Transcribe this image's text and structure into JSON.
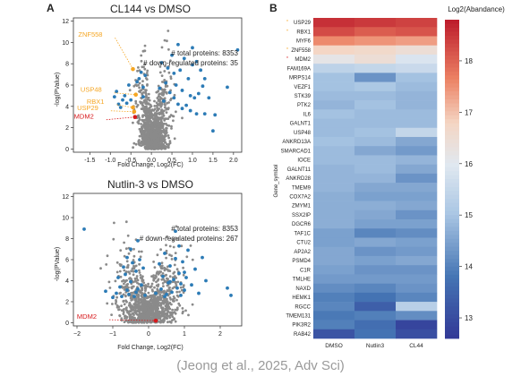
{
  "caption": "(Jeong et al., 2025, Adv Sci)",
  "colors": {
    "gray": "#8a8a8a",
    "blue": "#2c7bb6",
    "orange": "#f5a623",
    "red": "#d7191c"
  },
  "chart_data": [
    {
      "type": "scatter",
      "panel_label": "A",
      "title": "CL144 vs DMSO",
      "xlabel": "Fold Change, Log2(FC)",
      "ylabel": "-log(PValue)",
      "xlim": [
        -1.9,
        2.2
      ],
      "ylim": [
        -0.3,
        12.3
      ],
      "xticks": [
        -1.5,
        -1.0,
        -0.5,
        0.0,
        0.5,
        1.0,
        1.5,
        2.0
      ],
      "xtick_labels": [
        "-1.5",
        "-1.0",
        "-0.5",
        "0.0",
        "0.5",
        "1.0",
        "1.5",
        "2.0"
      ],
      "yticks": [
        0,
        2,
        4,
        6,
        8,
        10,
        12
      ],
      "ytick_labels": [
        "0",
        "2",
        "4",
        "6",
        "8",
        "10",
        "12"
      ],
      "info_lines": [
        "# total proteins: 8353",
        "# down-regulated proteins: 35"
      ],
      "highlights": [
        {
          "name": "ZNF558",
          "x": -0.45,
          "y": 7.5,
          "color": "orange"
        },
        {
          "name": "USP48",
          "x": -0.38,
          "y": 5.1,
          "color": "orange"
        },
        {
          "name": "RBX1",
          "x": -0.45,
          "y": 3.9,
          "color": "orange"
        },
        {
          "name": "USP29",
          "x": -0.42,
          "y": 3.5,
          "color": "orange"
        },
        {
          "name": "MDM2",
          "x": -0.4,
          "y": 3.0,
          "color": "red"
        }
      ],
      "blue_points": [
        [
          -0.9,
          4.9
        ],
        [
          -0.85,
          5.4
        ],
        [
          -0.8,
          4.2
        ],
        [
          -0.7,
          4.6
        ],
        [
          -0.65,
          5.0
        ],
        [
          -0.6,
          4.3
        ],
        [
          -0.55,
          6.0
        ],
        [
          -0.3,
          6.6
        ],
        [
          -0.25,
          7.2
        ],
        [
          -0.2,
          5.8
        ],
        [
          -0.15,
          6.9
        ],
        [
          0.2,
          5.7
        ],
        [
          0.35,
          6.2
        ],
        [
          0.45,
          5.3
        ],
        [
          0.55,
          7.1
        ],
        [
          0.6,
          6.0
        ],
        [
          0.7,
          7.4
        ],
        [
          0.75,
          5.5
        ],
        [
          0.8,
          8.5
        ],
        [
          0.9,
          6.6
        ],
        [
          0.95,
          3.6
        ],
        [
          1.0,
          7.9
        ],
        [
          1.05,
          4.8
        ],
        [
          1.1,
          8.2
        ],
        [
          1.1,
          3.3
        ],
        [
          1.2,
          7.4
        ],
        [
          1.25,
          5.9
        ],
        [
          1.3,
          3.3
        ],
        [
          1.4,
          4.8
        ],
        [
          1.5,
          1.7
        ],
        [
          1.55,
          3.2
        ],
        [
          1.85,
          5.8
        ],
        [
          2.1,
          9.3
        ],
        [
          0.3,
          4.5
        ],
        [
          0.65,
          4.2
        ],
        [
          0.85,
          4.1
        ],
        [
          0.5,
          8.8
        ],
        [
          1.0,
          9.5
        ],
        [
          0.65,
          9.8
        ],
        [
          0.4,
          7.6
        ],
        [
          1.15,
          5.2
        ],
        [
          0.95,
          5.0
        ],
        [
          -0.75,
          3.9
        ],
        [
          -0.5,
          4.6
        ],
        [
          -0.2,
          4.9
        ],
        [
          0.25,
          8.1
        ],
        [
          0.55,
          4.8
        ],
        [
          0.75,
          3.8
        ],
        [
          -0.35,
          6.3
        ],
        [
          1.3,
          6.6
        ]
      ],
      "gray_cloud": {
        "x_mean": 0.05,
        "x_sd": 0.18,
        "y_max": 12,
        "count": 1100
      }
    },
    {
      "type": "scatter",
      "panel_label": "",
      "title": "Nutlin-3 vs DMSO",
      "xlabel": "Fold Change, Log2(FC)",
      "ylabel": "-log(PValue)",
      "xlim": [
        -2.1,
        2.6
      ],
      "ylim": [
        -0.3,
        12.3
      ],
      "xticks": [
        -2,
        -1,
        0,
        1,
        2
      ],
      "xtick_labels": [
        "−2",
        "−1",
        "0",
        "1",
        "2"
      ],
      "yticks": [
        0,
        2,
        4,
        6,
        8,
        10,
        12
      ],
      "ytick_labels": [
        "0",
        "2",
        "4",
        "6",
        "8",
        "10",
        "12"
      ],
      "info_lines": [
        "# total proteins: 8353",
        "# down-regulated proteins: 267"
      ],
      "highlights": [
        {
          "name": "MDM2",
          "x": 0.2,
          "y": 0.2,
          "color": "red"
        }
      ],
      "blue_points": [
        [
          -1.8,
          8.9
        ],
        [
          -1.2,
          3.0
        ],
        [
          -0.9,
          2.8
        ],
        [
          -0.8,
          3.4
        ],
        [
          -0.7,
          5.3
        ],
        [
          -0.65,
          4.6
        ],
        [
          -0.6,
          6.2
        ],
        [
          -0.55,
          2.7
        ],
        [
          -0.5,
          3.9
        ],
        [
          -0.45,
          5.7
        ],
        [
          -0.4,
          2.5
        ],
        [
          -0.35,
          4.9
        ],
        [
          -0.3,
          3.2
        ],
        [
          -0.25,
          6.0
        ],
        [
          -0.5,
          7.0
        ],
        [
          -0.3,
          7.8
        ],
        [
          -0.2,
          3.6
        ],
        [
          -0.15,
          5.2
        ],
        [
          0.35,
          3.2
        ],
        [
          0.4,
          4.4
        ],
        [
          0.45,
          6.6
        ],
        [
          0.5,
          2.7
        ],
        [
          0.55,
          3.8
        ],
        [
          0.6,
          5.4
        ],
        [
          0.65,
          2.9
        ],
        [
          0.7,
          4.1
        ],
        [
          0.75,
          6.1
        ],
        [
          0.8,
          3.3
        ],
        [
          0.85,
          4.7
        ],
        [
          0.9,
          2.6
        ],
        [
          0.95,
          5.8
        ],
        [
          1.0,
          3.1
        ],
        [
          1.05,
          4.3
        ],
        [
          1.1,
          6.9
        ],
        [
          1.2,
          3.6
        ],
        [
          1.3,
          5.1
        ],
        [
          1.4,
          2.8
        ],
        [
          1.6,
          4.0
        ],
        [
          2.2,
          3.3
        ],
        [
          2.3,
          2.6
        ],
        [
          0.75,
          8.7
        ],
        [
          0.85,
          7.3
        ],
        [
          -0.85,
          4.3
        ],
        [
          -1.0,
          2.4
        ],
        [
          0.3,
          5.6
        ],
        [
          0.2,
          2.8
        ],
        [
          -0.1,
          2.6
        ],
        [
          1.5,
          6.2
        ],
        [
          -0.6,
          3.1
        ],
        [
          0.6,
          3.9
        ],
        [
          -0.35,
          2.9
        ],
        [
          0.45,
          2.5
        ],
        [
          1.0,
          4.8
        ],
        [
          -0.75,
          2.5
        ],
        [
          0.9,
          3.7
        ]
      ],
      "gray_cloud": {
        "x_mean": 0.0,
        "x_sd": 0.42,
        "y_max": 10.5,
        "count": 1100
      }
    },
    {
      "type": "heatmap",
      "panel_label": "B",
      "title": "",
      "colorbar_label": "Log2(Abandance)",
      "ylabel": "Gene_symbol",
      "columns": [
        "DMSO",
        "Nutlin3",
        "CL44"
      ],
      "rows": [
        "USP29",
        "RBX1",
        "MYF6",
        "ZNF558",
        "MDM2",
        "FAM169A",
        "MRPS14",
        "VEZF1",
        "STK39",
        "PTK2",
        "IL6",
        "GALNT1",
        "USP48",
        "ANKRD13A",
        "SMARCAD1",
        "IOCE",
        "GALNT11",
        "ANKRD28",
        "TMEM9",
        "COX7A2",
        "ZMYM1",
        "SSX2IP",
        "DGCR6",
        "TAF1C",
        "CTU2",
        "AP2A2",
        "PSMD4",
        "C1R",
        "TMLHE",
        "NAXD",
        "HEMK1",
        "RGCC",
        "TMEM131",
        "PIK3R2",
        "RAB42"
      ],
      "marked_rows": [
        "USP29",
        "RBX1",
        "ZNF558",
        "MDM2"
      ],
      "values": [
        [
          18.6,
          18.5,
          18.4
        ],
        [
          18.3,
          18.1,
          18.2
        ],
        [
          17.6,
          17.5,
          17.4
        ],
        [
          16.8,
          16.7,
          16.5
        ],
        [
          16.2,
          16.5,
          15.9
        ],
        [
          15.4,
          15.5,
          15.6
        ],
        [
          15.0,
          14.3,
          15.0
        ],
        [
          15.0,
          15.1,
          14.9
        ],
        [
          14.9,
          14.9,
          14.8
        ],
        [
          14.8,
          15.0,
          14.8
        ],
        [
          15.0,
          14.9,
          14.9
        ],
        [
          14.9,
          14.9,
          14.9
        ],
        [
          14.9,
          15.0,
          15.5
        ],
        [
          15.0,
          14.9,
          14.6
        ],
        [
          14.9,
          14.6,
          14.4
        ],
        [
          14.9,
          14.9,
          14.8
        ],
        [
          14.8,
          14.9,
          14.6
        ],
        [
          14.8,
          14.8,
          14.3
        ],
        [
          14.8,
          14.6,
          14.6
        ],
        [
          14.7,
          14.5,
          14.5
        ],
        [
          14.7,
          14.7,
          14.6
        ],
        [
          14.7,
          14.6,
          14.3
        ],
        [
          14.7,
          14.5,
          14.5
        ],
        [
          14.5,
          14.1,
          14.2
        ],
        [
          14.5,
          14.6,
          14.5
        ],
        [
          14.6,
          14.3,
          14.4
        ],
        [
          14.6,
          14.5,
          14.6
        ],
        [
          14.5,
          14.3,
          14.3
        ],
        [
          14.4,
          14.4,
          14.4
        ],
        [
          14.2,
          14.1,
          14.3
        ],
        [
          14.0,
          13.8,
          14.1
        ],
        [
          14.1,
          13.4,
          15.3
        ],
        [
          13.9,
          14.0,
          14.2
        ],
        [
          14.0,
          13.7,
          12.9
        ],
        [
          13.2,
          13.8,
          13.1
        ]
      ],
      "vmin": 12.6,
      "vmax": 18.8,
      "colorbar_ticks": [
        13,
        14,
        15,
        16,
        17,
        18
      ],
      "colorbar_tick_labels": [
        "13",
        "14",
        "15",
        "16",
        "17",
        "18"
      ]
    }
  ]
}
